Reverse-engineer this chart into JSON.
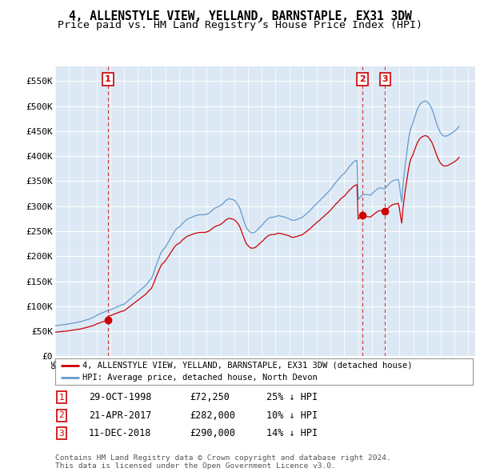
{
  "title": "4, ALLENSTYLE VIEW, YELLAND, BARNSTAPLE, EX31 3DW",
  "subtitle": "Price paid vs. HM Land Registry's House Price Index (HPI)",
  "title_fontsize": 10.5,
  "subtitle_fontsize": 9.5,
  "ylim": [
    0,
    580000
  ],
  "yticks": [
    0,
    50000,
    100000,
    150000,
    200000,
    250000,
    300000,
    350000,
    400000,
    450000,
    500000,
    550000
  ],
  "ytick_labels": [
    "£0",
    "£50K",
    "£100K",
    "£150K",
    "£200K",
    "£250K",
    "£300K",
    "£350K",
    "£400K",
    "£450K",
    "£500K",
    "£550K"
  ],
  "xlim_start": 1995.0,
  "xlim_end": 2025.5,
  "background_color": "#ffffff",
  "chart_bg_color": "#dce9f5",
  "grid_color": "#ffffff",
  "sale_color": "#cc0000",
  "hpi_color": "#6699cc",
  "sale_label": "4, ALLENSTYLE VIEW, YELLAND, BARNSTAPLE, EX31 3DW (detached house)",
  "hpi_label": "HPI: Average price, detached house, North Devon",
  "transactions": [
    {
      "num": 1,
      "date": "29-OCT-1998",
      "price": 72250,
      "pct": "25%",
      "dir": "↓",
      "year": 1998.83
    },
    {
      "num": 2,
      "date": "21-APR-2017",
      "price": 282000,
      "pct": "10%",
      "dir": "↓",
      "year": 2017.3
    },
    {
      "num": 3,
      "date": "11-DEC-2018",
      "price": 290000,
      "pct": "14%",
      "dir": "↓",
      "year": 2018.95
    }
  ],
  "footnote": "Contains HM Land Registry data © Crown copyright and database right 2024.\nThis data is licensed under the Open Government Licence v3.0.",
  "hpi_data_monthly": {
    "start_year": 1995,
    "start_month": 1,
    "values": [
      61000,
      61500,
      62000,
      61800,
      62200,
      62800,
      63000,
      63400,
      63200,
      63800,
      64000,
      64200,
      65000,
      65500,
      65800,
      66200,
      66800,
      67000,
      67500,
      68000,
      68500,
      68800,
      69200,
      69600,
      71000,
      71500,
      72000,
      72800,
      73500,
      74200,
      75000,
      76000,
      77000,
      78000,
      79000,
      80000,
      82000,
      83000,
      84000,
      85000,
      86000,
      87000,
      88000,
      89000,
      90000,
      91000,
      91500,
      92000,
      93000,
      94000,
      95000,
      96000,
      97000,
      98000,
      99000,
      100000,
      101000,
      102000,
      103000,
      103500,
      104000,
      106000,
      108000,
      110000,
      112000,
      114000,
      116000,
      118000,
      120000,
      122000,
      124000,
      126000,
      128000,
      130000,
      132000,
      134000,
      136000,
      138000,
      140000,
      142000,
      145000,
      148000,
      151000,
      153000,
      156000,
      162000,
      168000,
      175000,
      182000,
      188000,
      194000,
      200000,
      206000,
      210000,
      213000,
      215000,
      218000,
      222000,
      226000,
      230000,
      234000,
      238000,
      242000,
      246000,
      250000,
      253000,
      255000,
      257000,
      258000,
      260000,
      263000,
      266000,
      268000,
      270000,
      272000,
      274000,
      275000,
      276000,
      277000,
      278000,
      279000,
      280000,
      281000,
      281500,
      282000,
      282500,
      283000,
      283000,
      283000,
      283000,
      283000,
      283500,
      284000,
      285000,
      286000,
      288000,
      290000,
      292000,
      294000,
      296000,
      297000,
      298000,
      299000,
      300000,
      301000,
      303000,
      305000,
      307000,
      310000,
      312000,
      313000,
      315000,
      315000,
      314000,
      314000,
      313000,
      312000,
      310000,
      307000,
      304000,
      300000,
      295000,
      288000,
      281000,
      274000,
      267000,
      260000,
      256000,
      253000,
      250000,
      248000,
      247000,
      247000,
      247500,
      248000,
      250000,
      252000,
      255000,
      257000,
      259000,
      262000,
      264000,
      267000,
      270000,
      272000,
      274000,
      276000,
      277000,
      278000,
      278000,
      278000,
      278500,
      279000,
      280000,
      281000,
      281000,
      280500,
      280000,
      279500,
      279000,
      278000,
      277500,
      276500,
      276000,
      275000,
      273500,
      272000,
      272000,
      272000,
      272500,
      273000,
      274000,
      275000,
      276000,
      276500,
      277000,
      279000,
      281000,
      283000,
      285000,
      287000,
      289000,
      291000,
      294000,
      296000,
      299000,
      301000,
      303000,
      306000,
      308000,
      310000,
      312000,
      315000,
      317000,
      319000,
      322000,
      324000,
      326000,
      329000,
      331000,
      334000,
      337000,
      340000,
      343000,
      346000,
      349000,
      351000,
      354000,
      357000,
      360000,
      362000,
      364000,
      366000,
      369000,
      372000,
      375000,
      378000,
      381000,
      383000,
      386000,
      388000,
      390000,
      391000,
      392000,
      313000,
      316000,
      319000,
      321000,
      323000,
      323500,
      323500,
      323200,
      323000,
      322800,
      322500,
      322000,
      325000,
      327000,
      329000,
      331000,
      333000,
      335000,
      336000,
      337000,
      336500,
      335500,
      335000,
      334500,
      337000,
      340000,
      342000,
      345000,
      347000,
      349000,
      350500,
      351500,
      352000,
      352500,
      353000,
      353500,
      342000,
      322000,
      308000,
      340000,
      362000,
      382000,
      400000,
      418000,
      435000,
      448000,
      457000,
      462000,
      468000,
      476000,
      483000,
      490000,
      496000,
      500000,
      504000,
      506000,
      508000,
      509000,
      510000,
      510000,
      509000,
      507000,
      504000,
      500000,
      496000,
      490000,
      483000,
      476000,
      468000,
      461000,
      455000,
      450000,
      446000,
      443000,
      441000,
      440000,
      440000,
      440500,
      441000,
      442500,
      444000,
      445500,
      447000,
      448500,
      450000,
      452000,
      454000,
      457000,
      460000
    ]
  }
}
